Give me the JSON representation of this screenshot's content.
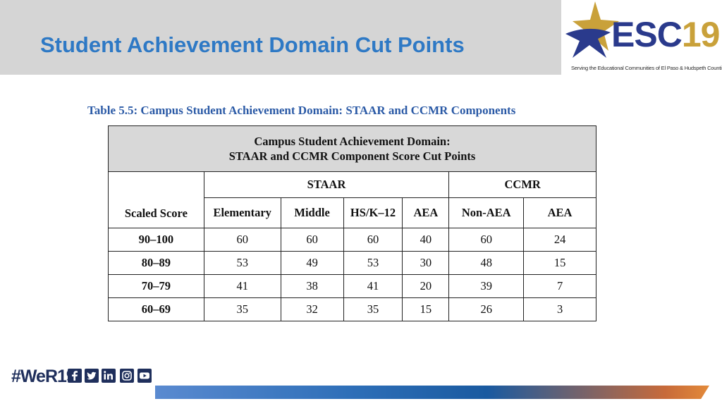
{
  "slide": {
    "title": "Student Achievement Domain Cut Points"
  },
  "logo": {
    "esc": "ESC",
    "number": "19",
    "tagline": "Serving the Educational Communities of El Paso & Hudspeth Counties"
  },
  "table": {
    "caption": "Table 5.5: Campus Student Achievement Domain: STAAR and CCMR Components",
    "banner_line1": "Campus Student Achievement Domain:",
    "banner_line2": "STAAR and CCMR Component Score Cut Points",
    "group_staar": "STAAR",
    "group_ccmr": "CCMR",
    "col_scaled": "Scaled Score",
    "columns": [
      "Elementary",
      "Middle",
      "HS/K–12",
      "AEA",
      "Non-AEA",
      "AEA"
    ],
    "rows": [
      {
        "label": "90–100",
        "values": [
          "60",
          "60",
          "60",
          "40",
          "60",
          "24"
        ]
      },
      {
        "label": "80–89",
        "values": [
          "53",
          "49",
          "53",
          "30",
          "48",
          "15"
        ]
      },
      {
        "label": "70–79",
        "values": [
          "41",
          "38",
          "41",
          "20",
          "39",
          "7"
        ]
      },
      {
        "label": "60–69",
        "values": [
          "35",
          "32",
          "35",
          "15",
          "26",
          "3"
        ]
      }
    ]
  },
  "footer": {
    "hashtag": "#WeR19",
    "social_icons": [
      "facebook-icon",
      "twitter-icon",
      "linkedin-icon",
      "instagram-icon",
      "youtube-icon"
    ]
  },
  "colors": {
    "title": "#2e79c5",
    "caption": "#2b5aa6",
    "logo_navy": "#2a3a8c",
    "logo_gold": "#c9a13a",
    "header_band": "#d5d5d5"
  }
}
